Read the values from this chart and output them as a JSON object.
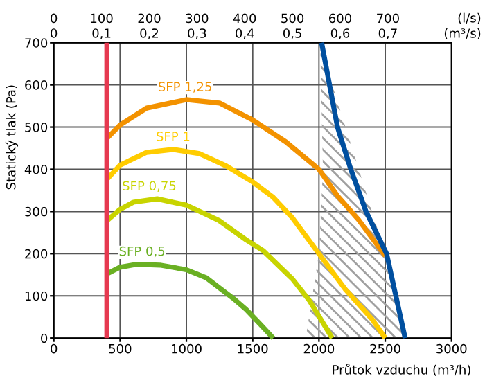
{
  "chart_data": {
    "type": "line",
    "xlabel": "Průtok vzduchu (m³/h)",
    "ylabel": "Statický tlak (Pa)",
    "x2label": "(l/s)",
    "annotations": [
      "0",
      "0,1",
      "0,2",
      "0,3",
      "0,4",
      "0,5",
      "0,6",
      "0,7",
      "(m³/s)"
    ],
    "xlim": [
      0,
      3000
    ],
    "xticks": [
      0,
      500,
      1000,
      1500,
      2000,
      2500,
      3000
    ],
    "ylim": [
      0,
      700
    ],
    "yticks": [
      0,
      100,
      200,
      300,
      400,
      500,
      600,
      700
    ],
    "x2lim": [
      0,
      833.3
    ],
    "x2ticks": [
      0,
      100,
      200,
      300,
      400,
      500,
      600,
      700
    ],
    "grid": true,
    "marker": "none",
    "line_style": "solid",
    "ref_lines": [
      {
        "axis": "x",
        "value": 400,
        "color": "#e63950"
      }
    ],
    "series": [
      {
        "name": "SFP 1,25",
        "color": "#f39200",
        "x": [
          400,
          500,
          700,
          1000,
          1250,
          1500,
          1750,
          2000,
          2140,
          2300,
          2500
        ],
        "values": [
          473,
          505,
          545,
          565,
          557,
          517,
          465,
          400,
          337,
          280,
          195
        ]
      },
      {
        "name": "SFP 1",
        "color": "#ffcc00",
        "x": [
          400,
          500,
          700,
          900,
          1100,
          1300,
          1500,
          1650,
          1800,
          2000,
          2200,
          2400,
          2500
        ],
        "values": [
          376,
          410,
          440,
          447,
          437,
          408,
          370,
          335,
          285,
          200,
          115,
          45,
          0
        ]
      },
      {
        "name": "SFP 0,75",
        "color": "#c8d400",
        "x": [
          400,
          500,
          600,
          780,
          1000,
          1245,
          1450,
          1580,
          1800,
          1930,
          2100
        ],
        "values": [
          278,
          305,
          322,
          330,
          315,
          279,
          233,
          207,
          140,
          88,
          0
        ]
      },
      {
        "name": "SFP 0,5",
        "color": "#6ab023",
        "x": [
          400,
          500,
          630,
          800,
          1000,
          1150,
          1245,
          1350,
          1450,
          1550,
          1655
        ],
        "values": [
          152,
          168,
          175,
          173,
          162,
          143,
          120,
          95,
          68,
          35,
          0
        ]
      },
      {
        "color": "#004f9f",
        "x": [
          2020,
          2140,
          2240,
          2355,
          2510,
          2580,
          2650
        ],
        "values": [
          700,
          500,
          400,
          300,
          200,
          100,
          0
        ]
      },
      {
        "type": "area",
        "color": "#a0a0a0",
        "x": [
          2010,
          2030,
          2000,
          1900,
          2640,
          2500,
          2010
        ],
        "values": [
          690,
          400,
          200,
          0,
          0,
          200,
          690
        ]
      }
    ]
  }
}
